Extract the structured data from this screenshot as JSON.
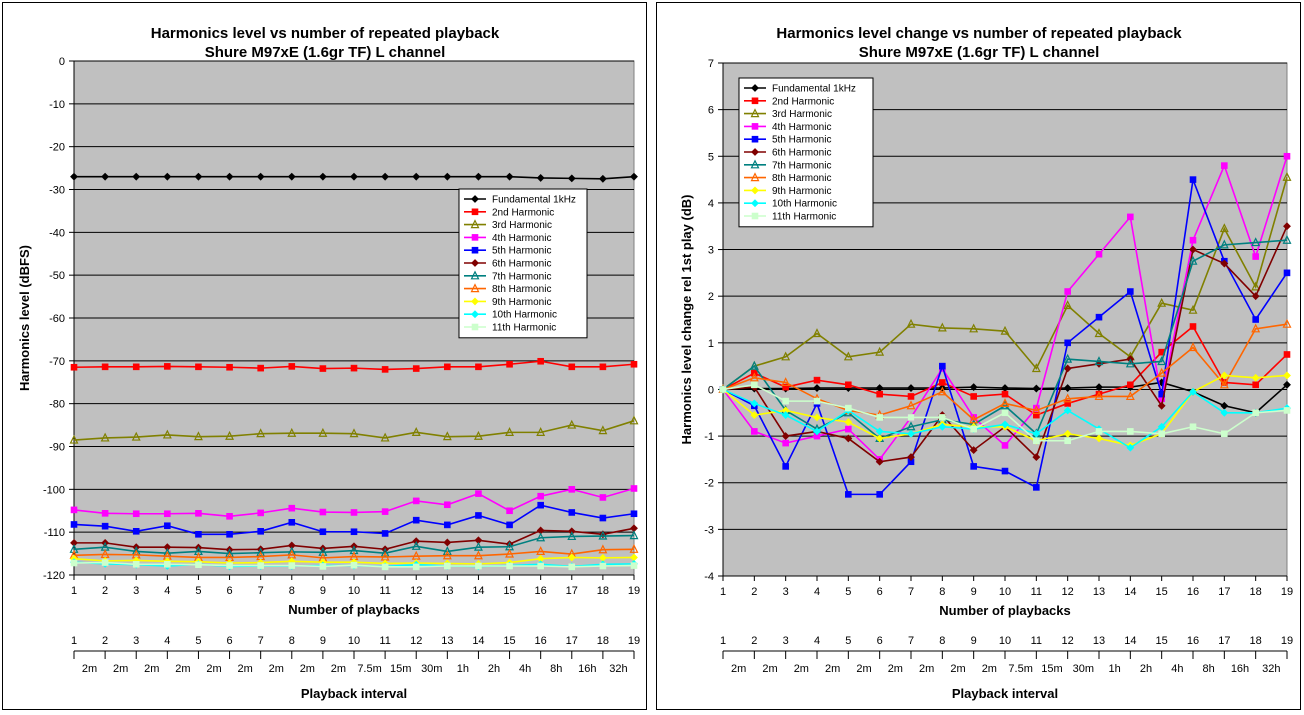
{
  "chart_data": [
    {
      "type": "line",
      "title": "Harmonics level vs number of repeated playback",
      "subtitle": "Shure M97xE (1.6gr TF) L channel",
      "xlabel": "Number of  playbacks",
      "ylabel": "Harmonics level (dBFS)",
      "x2label": "Playback interval",
      "x": [
        1,
        2,
        3,
        4,
        5,
        6,
        7,
        8,
        9,
        10,
        11,
        12,
        13,
        14,
        15,
        16,
        17,
        18,
        19
      ],
      "x_ticks": [
        "1",
        "2",
        "3",
        "4",
        "5",
        "6",
        "7",
        "8",
        "9",
        "10",
        "11",
        "12",
        "13",
        "14",
        "15",
        "16",
        "17",
        "18",
        "19"
      ],
      "intervals": [
        "2m",
        "2m",
        "2m",
        "2m",
        "2m",
        "2m",
        "2m",
        "2m",
        "2m",
        "7.5m",
        "15m",
        "30m",
        "1h",
        "2h",
        "4h",
        "8h",
        "16h",
        "32h"
      ],
      "ylim": [
        -120,
        0
      ],
      "yticks": [
        "0",
        "-10",
        "-20",
        "-30",
        "-40",
        "-50",
        "-60",
        "-70",
        "-80",
        "-90",
        "-100",
        "-110",
        "-120"
      ],
      "grid": true,
      "legend_position": "right-middle",
      "series": [
        {
          "name": "Fundamental 1kHz",
          "color": "#000000",
          "marker": "diamond",
          "values": [
            -27,
            -27,
            -27,
            -27,
            -27,
            -27,
            -27,
            -27,
            -27,
            -27,
            -27,
            -27,
            -27,
            -27,
            -27,
            -27.3,
            -27.4,
            -27.5,
            -27
          ]
        },
        {
          "name": "2nd Harmonic",
          "color": "#ff0000",
          "marker": "square",
          "values": [
            -71.5,
            -71.4,
            -71.4,
            -71.3,
            -71.4,
            -71.5,
            -71.7,
            -71.3,
            -71.8,
            -71.7,
            -72,
            -71.8,
            -71.4,
            -71.4,
            -70.8,
            -70.1,
            -71.4,
            -71.4,
            -70.8
          ]
        },
        {
          "name": "3rd Harmonic",
          "color": "#808000",
          "marker": "triangle",
          "values": [
            -88.5,
            -88,
            -87.8,
            -87.3,
            -87.7,
            -87.6,
            -87,
            -86.9,
            -86.9,
            -87,
            -88,
            -86.7,
            -87.7,
            -87.6,
            -86.7,
            -86.7,
            -85,
            -86.3,
            -84
          ]
        },
        {
          "name": "4th Harmonic",
          "color": "#ff00ff",
          "marker": "square",
          "values": [
            -104.8,
            -105.6,
            -105.7,
            -105.7,
            -105.6,
            -106.3,
            -105.5,
            -104.4,
            -105.3,
            -105.4,
            -105.2,
            -102.7,
            -103.6,
            -101,
            -105,
            -101.6,
            -100,
            -101.9,
            -99.8
          ]
        },
        {
          "name": "5th Harmonic",
          "color": "#0000ff",
          "marker": "square",
          "values": [
            -108.2,
            -108.6,
            -109.8,
            -108.5,
            -110.5,
            -110.5,
            -109.8,
            -107.7,
            -109.9,
            -109.9,
            -110.3,
            -107.2,
            -108.3,
            -106.1,
            -108.3,
            -103.7,
            -105.4,
            -106.7,
            -105.7
          ]
        },
        {
          "name": "6th Harmonic",
          "color": "#800000",
          "marker": "diamond",
          "values": [
            -112.5,
            -112.5,
            -113.5,
            -113.5,
            -113.6,
            -114.1,
            -114,
            -113.1,
            -113.8,
            -113.3,
            -114,
            -112.1,
            -112.4,
            -111.9,
            -112.8,
            -109.6,
            -109.8,
            -110.5,
            -109.1
          ]
        },
        {
          "name": "7th Harmonic",
          "color": "#008080",
          "marker": "triangle",
          "values": [
            -114,
            -113.5,
            -114.5,
            -114.9,
            -114.5,
            -115,
            -114.8,
            -114.6,
            -114.7,
            -114.3,
            -114.9,
            -113.3,
            -114.5,
            -113.5,
            -113.4,
            -111.3,
            -111,
            -110.9,
            -110.8
          ]
        },
        {
          "name": "8th Harmonic",
          "color": "#ff6600",
          "marker": "triangle",
          "values": [
            -115.4,
            -115.2,
            -115.3,
            -115.6,
            -115.9,
            -115.9,
            -115.7,
            -115.3,
            -116,
            -115.7,
            -115.8,
            -115.6,
            -115.5,
            -115.5,
            -115.1,
            -114.5,
            -115.1,
            -114.1,
            -114
          ]
        },
        {
          "name": "9th Harmonic",
          "color": "#ffff00",
          "marker": "diamond",
          "values": [
            -116.2,
            -116.7,
            -116.6,
            -116.8,
            -116.9,
            -117.2,
            -117.1,
            -116.8,
            -117,
            -117,
            -117.3,
            -117.2,
            -117.3,
            -117.4,
            -117.1,
            -116.2,
            -115.9,
            -116,
            -115.9
          ]
        },
        {
          "name": "10th Harmonic",
          "color": "#00ffff",
          "marker": "diamond",
          "values": [
            -117,
            -117.4,
            -117.6,
            -117.9,
            -117.5,
            -118,
            -117.9,
            -117.9,
            -117.8,
            -117.8,
            -118,
            -117.6,
            -117.9,
            -118,
            -117.8,
            -117.5,
            -118,
            -117.5,
            -117.4
          ]
        },
        {
          "name": "11th Harmonic",
          "color": "#ccffcc",
          "marker": "square",
          "values": [
            -117.2,
            -117.1,
            -117.5,
            -117.5,
            -117.6,
            -117.8,
            -117.8,
            -117.8,
            -118,
            -117.7,
            -118.1,
            -118.1,
            -117.9,
            -117.9,
            -117.9,
            -117.9,
            -118.1,
            -117.9,
            -117.8
          ]
        }
      ]
    },
    {
      "type": "line",
      "title": "Harmonics level change vs number of repeated playback",
      "subtitle": "Shure M97xE (1.6gr TF) L channel",
      "xlabel": "Number of  playbacks",
      "ylabel": "Harmonics level change rel 1st play (dB)",
      "x2label": "Playback interval",
      "x": [
        1,
        2,
        3,
        4,
        5,
        6,
        7,
        8,
        9,
        10,
        11,
        12,
        13,
        14,
        15,
        16,
        17,
        18,
        19
      ],
      "x_ticks": [
        "1",
        "2",
        "3",
        "4",
        "5",
        "6",
        "7",
        "8",
        "9",
        "10",
        "11",
        "12",
        "13",
        "14",
        "15",
        "16",
        "17",
        "18",
        "19"
      ],
      "intervals": [
        "2m",
        "2m",
        "2m",
        "2m",
        "2m",
        "2m",
        "2m",
        "2m",
        "2m",
        "7.5m",
        "15m",
        "30m",
        "1h",
        "2h",
        "4h",
        "8h",
        "16h",
        "32h"
      ],
      "ylim": [
        -4,
        7
      ],
      "yticks": [
        "7",
        "6",
        "5",
        "4",
        "3",
        "2",
        "1",
        "0",
        "-1",
        "-2",
        "-3",
        "-4"
      ],
      "grid": true,
      "legend_position": "top-left",
      "series": [
        {
          "name": "Fundamental 1kHz",
          "color": "#000000",
          "marker": "diamond",
          "values": [
            0,
            0.02,
            0.02,
            0.03,
            0.03,
            0.03,
            0.03,
            0.03,
            0.05,
            0.03,
            0.02,
            0.03,
            0.05,
            0.05,
            0.15,
            -0.05,
            -0.35,
            -0.5,
            0.1
          ]
        },
        {
          "name": "2nd Harmonic",
          "color": "#ff0000",
          "marker": "square",
          "values": [
            0,
            0.35,
            0.05,
            0.2,
            0.1,
            -0.1,
            -0.15,
            0.15,
            -0.15,
            -0.1,
            -0.55,
            -0.3,
            -0.1,
            0.1,
            0.8,
            1.35,
            0.15,
            0.1,
            0.75
          ]
        },
        {
          "name": "3rd Harmonic",
          "color": "#808000",
          "marker": "triangle",
          "values": [
            0,
            0.5,
            0.7,
            1.2,
            0.7,
            0.8,
            1.4,
            1.32,
            1.3,
            1.25,
            0.45,
            1.8,
            1.2,
            0.7,
            1.85,
            1.7,
            3.45,
            2.2,
            4.55
          ]
        },
        {
          "name": "4th Harmonic",
          "color": "#ff00ff",
          "marker": "square",
          "values": [
            0,
            -0.9,
            -1.15,
            -1,
            -0.85,
            -1.5,
            -0.6,
            0.45,
            -0.6,
            -1.2,
            -0.4,
            2.1,
            2.9,
            3.7,
            -0.2,
            3.2,
            4.8,
            2.85,
            5
          ]
        },
        {
          "name": "5th Harmonic",
          "color": "#0000ff",
          "marker": "square",
          "values": [
            0,
            -0.35,
            -1.65,
            -0.3,
            -2.25,
            -2.25,
            -1.55,
            0.5,
            -1.65,
            -1.75,
            -2.1,
            1,
            1.55,
            2.1,
            -0.1,
            4.5,
            2.75,
            1.5,
            2.5
          ]
        },
        {
          "name": "6th Harmonic",
          "color": "#800000",
          "marker": "diamond",
          "values": [
            0,
            0.05,
            -1,
            -0.9,
            -1.05,
            -1.55,
            -1.45,
            -0.55,
            -1.3,
            -0.8,
            -1.45,
            0.45,
            0.55,
            0.65,
            -0.35,
            3,
            2.7,
            2,
            3.5
          ]
        },
        {
          "name": "7th Harmonic",
          "color": "#008080",
          "marker": "triangle",
          "values": [
            0,
            0.5,
            -0.45,
            -0.85,
            -0.5,
            -1.05,
            -0.8,
            -0.65,
            -0.75,
            -0.35,
            -0.95,
            0.65,
            0.6,
            0.55,
            0.6,
            2.75,
            3.1,
            3.15,
            3.2
          ]
        },
        {
          "name": "8th Harmonic",
          "color": "#ff6600",
          "marker": "triangle",
          "values": [
            0,
            0.25,
            0.15,
            -0.2,
            -0.45,
            -0.55,
            -0.35,
            -0.05,
            -0.65,
            -0.3,
            -0.45,
            -0.2,
            -0.15,
            -0.15,
            0.35,
            0.9,
            0.1,
            1.3,
            1.4
          ]
        },
        {
          "name": "9th Harmonic",
          "color": "#ffff00",
          "marker": "diamond",
          "values": [
            0,
            -0.55,
            -0.45,
            -0.6,
            -0.7,
            -1.05,
            -0.95,
            -0.75,
            -0.8,
            -0.8,
            -1.1,
            -0.95,
            -1.05,
            -1.2,
            -0.95,
            -0.05,
            0.3,
            0.25,
            0.3
          ]
        },
        {
          "name": "10th Harmonic",
          "color": "#00ffff",
          "marker": "diamond",
          "values": [
            0,
            -0.3,
            -0.55,
            -0.9,
            -0.45,
            -0.9,
            -0.95,
            -0.8,
            -0.85,
            -0.75,
            -0.95,
            -0.45,
            -0.85,
            -1.25,
            -0.8,
            -0.05,
            -0.5,
            -0.5,
            -0.4
          ]
        },
        {
          "name": "11th Harmonic",
          "color": "#ccffcc",
          "marker": "square",
          "values": [
            0,
            0.1,
            -0.25,
            -0.25,
            -0.4,
            -0.6,
            -0.6,
            -0.6,
            -0.85,
            -0.5,
            -1.1,
            -1.1,
            -0.9,
            -0.9,
            -0.95,
            -0.8,
            -0.95,
            -0.5,
            -0.45
          ]
        }
      ]
    }
  ]
}
